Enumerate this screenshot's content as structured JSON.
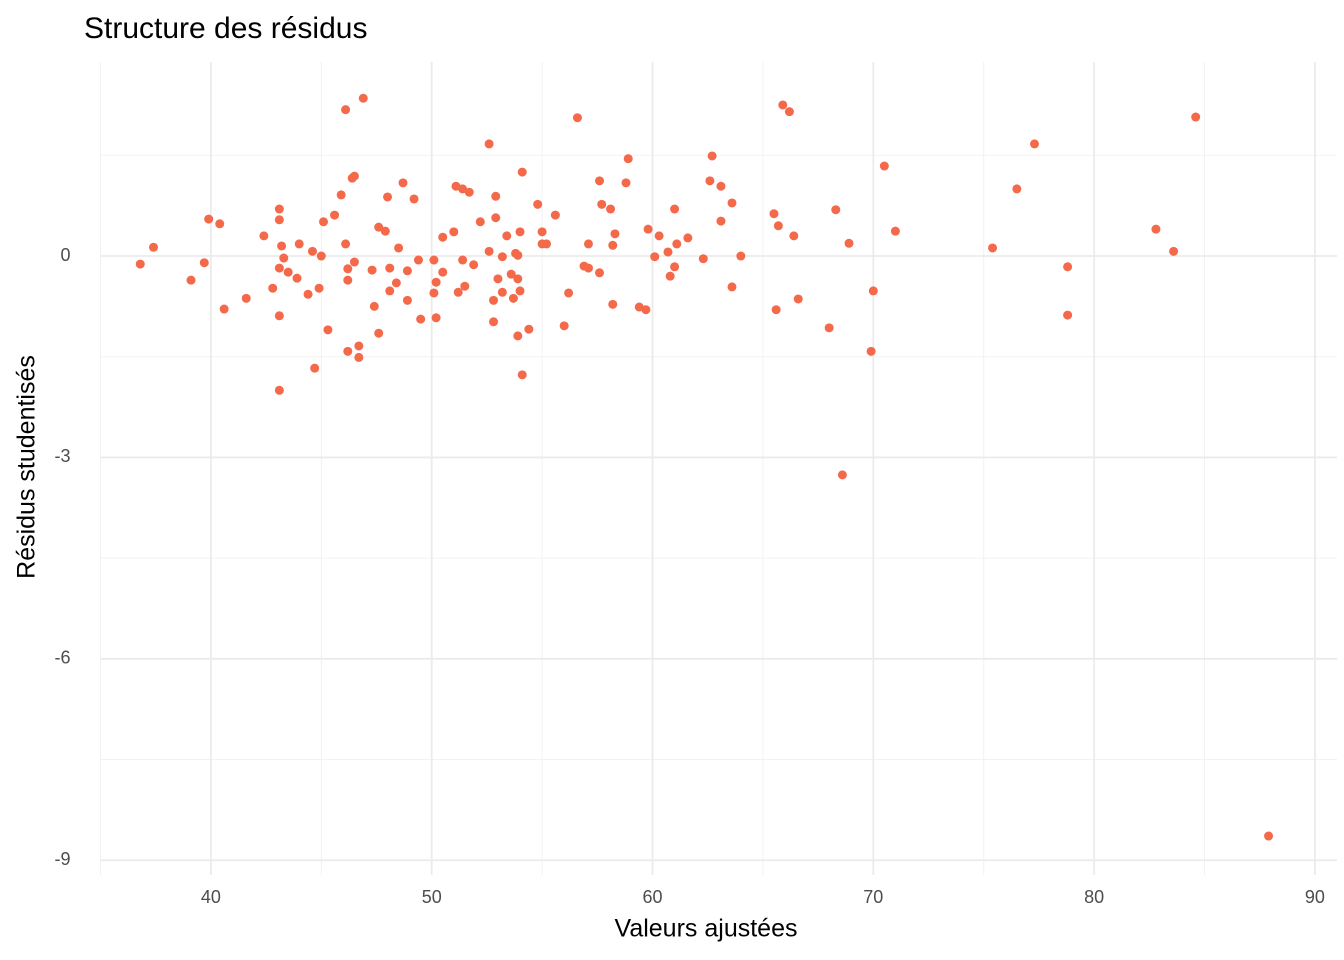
{
  "chart_data": {
    "type": "scatter",
    "title": "Structure des résidus",
    "x_label": "Valeurs ajustées",
    "y_label": "Résidus studentisés",
    "color": "#f4694a",
    "grid": true,
    "xlim": [
      35.0,
      91.0
    ],
    "xticks": [
      40,
      50,
      60,
      70,
      80,
      90
    ],
    "ylim": [
      -9.22,
      2.89
    ],
    "yticks": [
      -9,
      -6,
      -3,
      0
    ],
    "x": [
      36.8,
      37.4,
      39.1,
      39.7,
      39.9,
      40.4,
      40.6,
      41.6,
      42.4,
      42.8,
      43.1,
      43.1,
      43.1,
      43.1,
      43.1,
      43.2,
      43.3,
      43.5,
      43.9,
      44.0,
      44.4,
      44.6,
      44.7,
      44.9,
      45.0,
      45.1,
      45.3,
      45.6,
      45.9,
      46.1,
      46.1,
      46.2,
      46.2,
      46.2,
      46.4,
      46.5,
      46.5,
      46.7,
      46.7,
      46.9,
      47.3,
      47.4,
      47.6,
      47.6,
      47.9,
      48.0,
      48.1,
      48.1,
      48.4,
      48.5,
      48.7,
      48.9,
      48.9,
      49.2,
      49.4,
      49.5,
      50.1,
      50.1,
      50.2,
      50.2,
      50.5,
      50.5,
      51.0,
      51.1,
      51.2,
      51.4,
      51.4,
      51.5,
      51.7,
      51.9,
      52.2,
      52.6,
      52.6,
      52.8,
      52.8,
      52.9,
      52.9,
      53.0,
      53.2,
      53.2,
      53.4,
      53.6,
      53.7,
      53.8,
      53.9,
      53.9,
      53.9,
      54.0,
      54.0,
      54.1,
      54.1,
      54.4,
      54.8,
      55.0,
      55.0,
      55.2,
      55.6,
      56.0,
      56.2,
      56.6,
      56.9,
      57.1,
      57.1,
      57.6,
      57.6,
      57.7,
      58.1,
      58.2,
      58.2,
      58.3,
      58.8,
      58.9,
      59.4,
      59.7,
      59.8,
      60.1,
      60.3,
      60.7,
      60.8,
      61.0,
      61.0,
      61.1,
      61.6,
      62.3,
      62.6,
      62.7,
      63.1,
      63.1,
      63.6,
      63.6,
      64.0,
      65.5,
      65.6,
      65.7,
      65.9,
      66.2,
      66.4,
      66.6,
      68.0,
      68.3,
      68.6,
      68.9,
      69.9,
      70.0,
      70.5,
      71.0,
      75.4,
      76.5,
      77.3,
      78.8,
      78.8,
      82.8,
      83.6,
      84.6,
      87.9
    ],
    "values": [
      -0.12,
      0.13,
      -0.36,
      -0.1,
      0.55,
      0.48,
      -0.79,
      -0.63,
      0.3,
      -0.48,
      -2.0,
      0.7,
      0.54,
      -0.18,
      -0.89,
      0.15,
      -0.03,
      -0.24,
      -0.33,
      0.18,
      -0.57,
      0.07,
      -1.67,
      -0.48,
      0.0,
      0.51,
      -1.1,
      0.61,
      0.91,
      2.18,
      0.18,
      -0.19,
      -0.36,
      -1.42,
      1.16,
      1.19,
      -0.09,
      -1.34,
      -1.51,
      2.35,
      -0.21,
      -0.75,
      -1.15,
      0.43,
      0.37,
      0.88,
      -0.18,
      -0.52,
      -0.4,
      0.12,
      1.09,
      -0.66,
      -0.22,
      0.85,
      -0.06,
      -0.94,
      -0.55,
      -0.06,
      -0.39,
      -0.92,
      -0.24,
      0.28,
      0.36,
      1.04,
      -0.54,
      1.0,
      -0.06,
      -0.45,
      0.95,
      -0.13,
      0.51,
      0.07,
      1.67,
      -0.98,
      -0.66,
      0.57,
      0.89,
      -0.34,
      -0.54,
      -0.01,
      0.3,
      -0.27,
      -0.63,
      0.04,
      -1.19,
      0.01,
      -0.34,
      -0.52,
      0.36,
      -1.77,
      1.25,
      -1.09,
      0.77,
      0.36,
      0.18,
      0.18,
      0.61,
      -1.04,
      -0.55,
      2.06,
      -0.15,
      -0.18,
      0.18,
      1.12,
      -0.25,
      0.77,
      0.7,
      -0.72,
      0.16,
      0.33,
      1.09,
      1.45,
      -0.76,
      -0.8,
      0.4,
      -0.01,
      0.3,
      0.06,
      -0.3,
      -0.16,
      0.7,
      0.18,
      0.27,
      -0.04,
      1.12,
      1.49,
      1.04,
      0.52,
      0.79,
      -0.46,
      0.0,
      0.63,
      -0.8,
      0.45,
      2.25,
      2.15,
      0.3,
      -0.64,
      -1.07,
      0.69,
      -3.26,
      0.19,
      -1.42,
      -0.52,
      1.34,
      0.37,
      0.12,
      1.0,
      1.67,
      -0.88,
      -0.16,
      0.4,
      0.07,
      2.07,
      -8.64
    ]
  }
}
